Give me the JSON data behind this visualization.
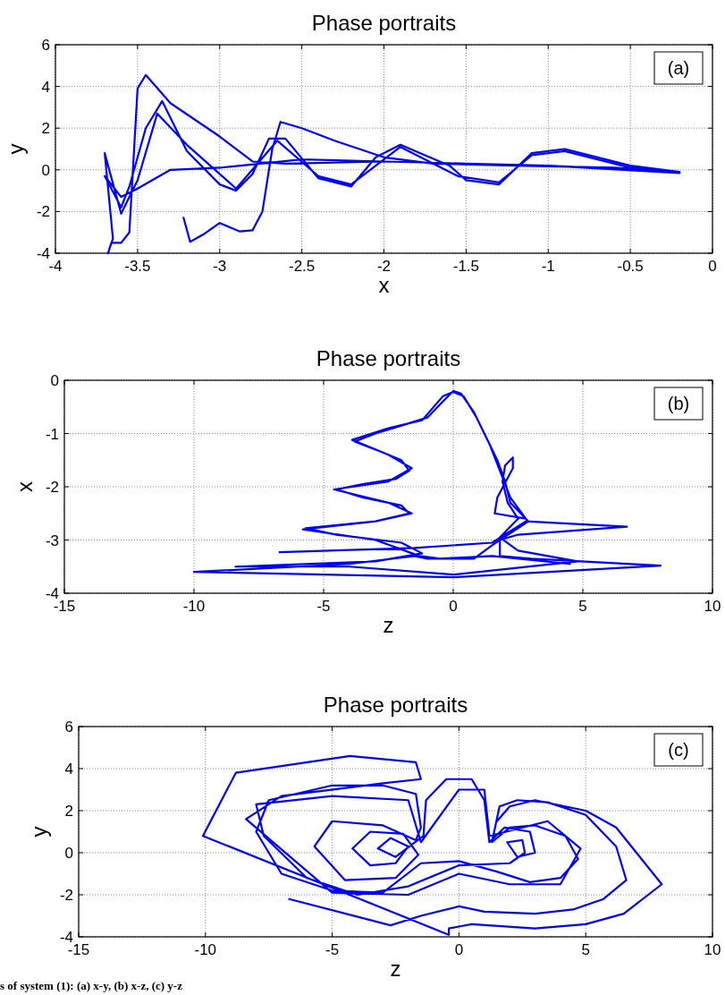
{
  "chart_data": [
    {
      "type": "line",
      "title": "Phase portraits",
      "xlabel": "x",
      "ylabel": "y",
      "xlim": [
        -4,
        0
      ],
      "ylim": [
        -4,
        6
      ],
      "xticks": [
        -4,
        -3.5,
        -3,
        -2.5,
        -2,
        -1.5,
        -1,
        -0.5,
        0
      ],
      "yticks": [
        -4,
        -2,
        0,
        2,
        4,
        6
      ],
      "grid": true,
      "annotations": [
        "(a)"
      ],
      "series": [
        {
          "color": "#0000ff",
          "x": [
            -3.22,
            -3.18,
            -3.1,
            -3.0,
            -2.88,
            -2.8,
            -2.74,
            -2.68,
            -2.63,
            -2.5,
            -2.3,
            -2.0,
            -1.7,
            -1.2,
            -0.6,
            -0.2,
            -0.5,
            -0.9,
            -1.1,
            -1.3,
            -1.5,
            -1.6,
            -1.9,
            -2.05,
            -2.2,
            -2.4,
            -2.6,
            -2.7,
            -2.8,
            -2.9,
            -3.0,
            -3.2,
            -3.35,
            -3.45,
            -3.55,
            -3.6,
            -3.7,
            -3.6,
            -3.5,
            -3.3,
            -3.0,
            -2.75,
            -2.5,
            -2.0,
            -1.5,
            -1.0,
            -0.2,
            -0.5,
            -0.9,
            -1.1,
            -1.3,
            -1.55,
            -1.9,
            -2.2,
            -2.4,
            -2.65,
            -2.9,
            -3.2,
            -3.38,
            -3.5,
            -3.6,
            -3.7,
            -3.65,
            -3.68,
            -3.66,
            -3.6,
            -3.55,
            -3.5,
            -3.45,
            -3.3,
            -3.0,
            -2.8,
            -2.6,
            -2.0,
            -1.5,
            -1.0,
            -0.2
          ],
          "values": [
            -2.3,
            -3.45,
            -3.1,
            -2.55,
            -2.95,
            -2.9,
            -2.0,
            1.0,
            2.3,
            2.0,
            1.4,
            0.6,
            0.3,
            0.2,
            0.1,
            -0.1,
            0.2,
            1.0,
            0.8,
            -0.7,
            -0.5,
            0.2,
            1.2,
            0.6,
            -0.8,
            -0.4,
            1.5,
            1.5,
            -0.2,
            -1.0,
            -0.7,
            0.9,
            3.3,
            2.0,
            -0.8,
            -1.8,
            -0.3,
            -1.3,
            -0.9,
            0.0,
            0.1,
            0.3,
            0.5,
            0.4,
            0.3,
            0.2,
            -0.1,
            0.1,
            0.9,
            0.7,
            -0.6,
            -0.3,
            1.1,
            -0.7,
            -0.3,
            1.4,
            -0.9,
            1.2,
            2.7,
            -0.5,
            -2.1,
            0.8,
            -3.3,
            -4.0,
            -3.5,
            -3.5,
            -3.0,
            3.9,
            4.55,
            3.2,
            1.6,
            0.4,
            0.3,
            0.4,
            0.3,
            0.2,
            -0.15
          ]
        }
      ]
    },
    {
      "type": "line",
      "title": "Phase portraits",
      "xlabel": "z",
      "ylabel": "x",
      "xlim": [
        -15,
        10
      ],
      "ylim": [
        -4,
        0
      ],
      "xticks": [
        -15,
        -10,
        -5,
        0,
        5,
        10
      ],
      "yticks": [
        -4,
        -3,
        -2,
        -1,
        0
      ],
      "grid": true,
      "annotations": [
        "(b)"
      ],
      "series": [
        {
          "color": "#0000ff",
          "x": [
            -6.7,
            -1.5,
            1.5,
            2.8,
            6.7,
            2.5,
            1.8,
            1.8,
            3,
            8,
            0,
            -10,
            -4,
            -1.5,
            -1,
            0.8,
            1.5,
            2.9,
            2.2,
            2.0,
            1.7,
            1.3,
            0.8,
            0.3,
            0,
            -0.3,
            -1,
            -2,
            -3,
            -3.8,
            -3,
            -2,
            -1.7,
            -2.2,
            -3.5,
            -4.5,
            -3.5,
            -2,
            -1.7,
            -3,
            -5.7,
            -4.5,
            -2,
            -1.2,
            -3,
            -8.4,
            -4,
            0,
            4.8,
            2.5,
            1.8,
            2.5,
            2.1,
            1.9,
            2.0,
            2.3,
            2.3,
            1.7,
            1.6,
            2.8,
            2.2,
            1.4,
            0.9,
            0.4,
            0,
            -0.4,
            -1.2,
            -2.5,
            -3.9,
            -2.5,
            -1.6,
            -2.5,
            -4.6,
            -2.5,
            -1.6,
            -3,
            -5.8,
            -3,
            -1.3,
            -0.5,
            1.5,
            4.5
          ],
          "values": [
            -3.23,
            -3.15,
            -3.05,
            -2.65,
            -2.75,
            -2.9,
            -3.0,
            -3.3,
            -3.35,
            -3.48,
            -3.7,
            -3.6,
            -3.45,
            -3.3,
            -3.35,
            -3.35,
            -3.1,
            -2.65,
            -2.3,
            -1.9,
            -1.5,
            -1.1,
            -0.6,
            -0.25,
            -0.2,
            -0.35,
            -0.7,
            -0.85,
            -1.0,
            -1.15,
            -1.3,
            -1.5,
            -1.7,
            -1.85,
            -1.95,
            -2.05,
            -2.2,
            -2.35,
            -2.5,
            -2.65,
            -2.78,
            -2.9,
            -3.05,
            -3.25,
            -3.4,
            -3.5,
            -3.5,
            -3.65,
            -3.4,
            -3.2,
            -2.95,
            -2.6,
            -2.3,
            -1.9,
            -1.6,
            -1.45,
            -1.65,
            -2.2,
            -2.5,
            -2.6,
            -2.2,
            -1.2,
            -0.7,
            -0.3,
            -0.22,
            -0.3,
            -0.75,
            -0.9,
            -1.12,
            -1.4,
            -1.65,
            -1.9,
            -2.05,
            -2.3,
            -2.5,
            -2.65,
            -2.8,
            -3.0,
            -3.3,
            -3.35,
            -3.3,
            -3.45
          ]
        }
      ]
    },
    {
      "type": "line",
      "title": "Phase portraits",
      "xlabel": "z",
      "ylabel": "y",
      "xlim": [
        -15,
        10
      ],
      "ylim": [
        -4,
        6
      ],
      "xticks": [
        -15,
        -10,
        -5,
        0,
        5,
        10
      ],
      "yticks": [
        -4,
        -2,
        0,
        2,
        4,
        6
      ],
      "grid": true,
      "annotations": [
        "(c)",
        "s of system (1): (a) x-y, (b) x-z, (c) y-z"
      ],
      "series": [
        {
          "color": "#0000ff",
          "x": [
            -6.7,
            -2.7,
            -1.5,
            0,
            1,
            3,
            4.5,
            5.7,
            6.6,
            6.2,
            5,
            3.5,
            2.3,
            1.6,
            1.3,
            2.0,
            3.0,
            4.2,
            4.7,
            4,
            2.8,
            1.5,
            0,
            -1.5,
            -3,
            -5,
            -7,
            -8,
            -7.5,
            -5,
            -3,
            -1.7,
            -1.5,
            -1.7,
            -3,
            -5,
            -5.7,
            -4.5,
            -2.5,
            -1.6,
            -2.2,
            -3.5,
            -4.2,
            -3.5,
            -2.5,
            -2,
            -2.7,
            -3.2,
            -2.5,
            -1.4,
            -1.3,
            -0.5,
            0.5,
            1.0,
            1.2,
            1.8,
            2.8,
            3,
            2.3,
            1.9,
            2.5,
            2.6,
            2,
            0,
            -2,
            -4,
            -6,
            -7.7,
            -8,
            -5,
            -2,
            -1.5,
            0,
            1,
            1.2,
            3.5,
            4.8,
            4,
            2,
            0,
            -2,
            -5,
            -8.4,
            -7,
            -3,
            -1.5,
            -1.7,
            -4.3,
            -8.8,
            -10.1,
            -0.4,
            -0.4,
            0.5,
            3,
            5,
            6.5,
            8,
            6.2,
            5,
            3,
            2,
            1.5
          ],
          "values": [
            -2.2,
            -3.45,
            -3.0,
            -2.55,
            -2.8,
            -2.9,
            -2.7,
            -2.2,
            -1.3,
            0.3,
            1.8,
            2.4,
            2.5,
            2.2,
            0.5,
            1.2,
            1.3,
            0.8,
            -0.3,
            -1.2,
            -1.4,
            -0.9,
            -0.4,
            -0.5,
            -1.9,
            -1.8,
            -1,
            1,
            2.5,
            3.2,
            3.2,
            2.8,
            1.2,
            0.6,
            1.3,
            1.5,
            0.3,
            -1.3,
            -1.2,
            -0.1,
            0.9,
            1.0,
            0.2,
            -0.6,
            -0.5,
            0.3,
            0.7,
            0.2,
            -0.2,
            0.8,
            2.5,
            3.5,
            3.5,
            2.5,
            0.5,
            1.2,
            1.0,
            0,
            -0.2,
            0.5,
            0.6,
            0.0,
            -0.5,
            -0.6,
            -1.6,
            -2.0,
            -1.2,
            0.8,
            2.3,
            2.7,
            2.5,
            0.5,
            3.0,
            3.0,
            0.8,
            1.5,
            0.2,
            -1.5,
            -1.5,
            -1,
            -2,
            -1.9,
            1.6,
            2.7,
            3.3,
            3.5,
            4.3,
            4.6,
            3.8,
            0.8,
            -3.9,
            -3.6,
            -3.4,
            -3.6,
            -3.4,
            -2.9,
            -1.5,
            1.2,
            2.0,
            2.5,
            2.2,
            1.5
          ]
        }
      ]
    }
  ]
}
